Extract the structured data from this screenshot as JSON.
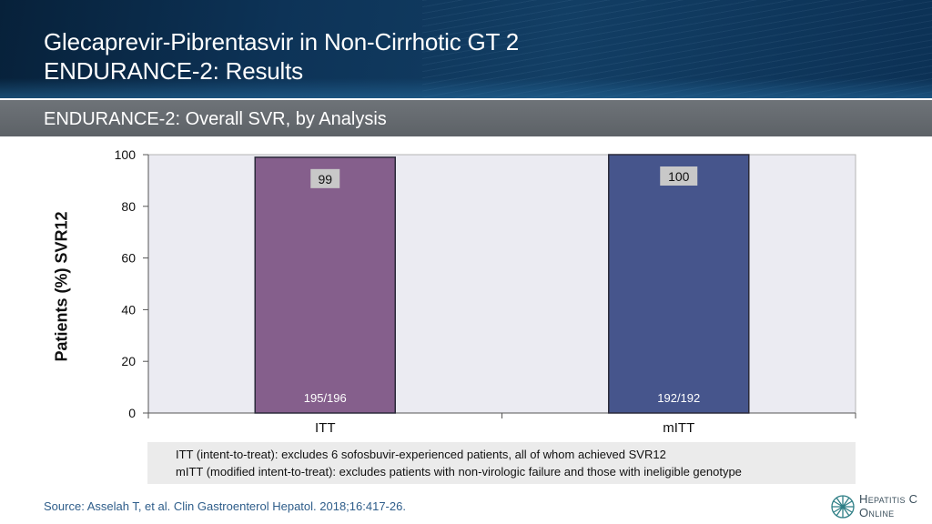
{
  "header": {
    "title_line1": "Glecaprevir-Pibrentasvir in Non-Cirrhotic GT 2",
    "title_line2": "ENDURANCE-2: Results"
  },
  "subheader": {
    "title": "ENDURANCE-2: Overall SVR, by Analysis"
  },
  "colors": {
    "header_bg": "#0d3357",
    "subheader_bg": "#656a6f",
    "plot_bg": "#ebebf2",
    "bar_itt": "#855f8c",
    "bar_mitt": "#46558c",
    "label_box": "#c8c8c8",
    "source_text": "#2e5d8a"
  },
  "chart_data": {
    "type": "bar",
    "categories": [
      "ITT",
      "mITT"
    ],
    "values": [
      99,
      100
    ],
    "data_labels": [
      "99",
      "100"
    ],
    "inner_labels": [
      "195/196",
      "192/192"
    ],
    "ylabel": "Patients (%) SVR12",
    "xlabel": "",
    "ylim": [
      0,
      100
    ],
    "yticks": [
      0,
      20,
      40,
      60,
      80,
      100
    ],
    "grid": false,
    "legend": "none"
  },
  "notes": {
    "line1": "ITT (intent-to-treat): excludes 6 sofosbuvir-experienced patients, all of whom achieved SVR12",
    "line2": "mITT (modified intent-to-treat): excludes patients with non-virologic failure and those with ineligible genotype"
  },
  "source": "Source: Asselah T, et al. Clin Gastroenterol Hepatol. 2018;16:417-26.",
  "logo": {
    "line1": "Hepatitis C",
    "line2": "Online",
    "icon": "hepatitis-c-online-logo-icon"
  }
}
